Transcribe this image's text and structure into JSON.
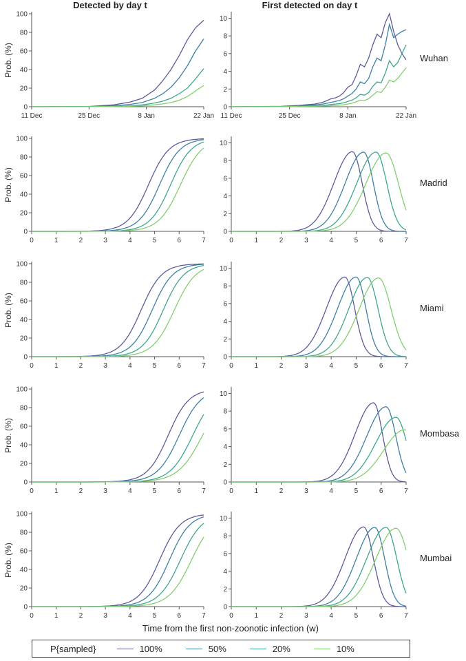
{
  "chart_data": {
    "type": "line",
    "column_titles": [
      "Detected by day t",
      "First detected on day t"
    ],
    "row_labels": [
      "Wuhan",
      "Madrid",
      "Miami",
      "Mombasa",
      "Mumbai"
    ],
    "ylabel": "Prob. (%)",
    "xlabel": "Time from the first non-zoonotic infection (w)",
    "legend_title": "P{sampled}",
    "series_names": [
      "100%",
      "50%",
      "20%",
      "10%"
    ],
    "series_colors": [
      "#5b5b9a",
      "#3f7fa5",
      "#3ea68f",
      "#82cf6d"
    ],
    "wuhan_xticks": {
      "labels": [
        "11 Dec",
        "25 Dec",
        "8 Jan",
        "22 Jan"
      ],
      "values": [
        0,
        14,
        28,
        42
      ]
    },
    "wuhan_xlim": [
      0,
      42
    ],
    "week_xticks": [
      "0",
      "1",
      "2",
      "3",
      "4",
      "5",
      "6",
      "7"
    ],
    "week_xlim": [
      0,
      7
    ],
    "cum_yticks": [
      "0",
      "20",
      "40",
      "60",
      "80",
      "100"
    ],
    "cum_ylim": [
      0,
      100
    ],
    "daily_yticks": [
      "0",
      "2",
      "4",
      "6",
      "8",
      "10"
    ],
    "daily_ylim": [
      0,
      10.5
    ],
    "wuhan": {
      "x": [
        0,
        14,
        20,
        24,
        27,
        30,
        32,
        34,
        36,
        38,
        40,
        42
      ],
      "cumulative": [
        {
          "name": "100%",
          "values": [
            0,
            0.3,
            2,
            5,
            9,
            18,
            28,
            40,
            55,
            72,
            85,
            93
          ]
        },
        {
          "name": "50%",
          "values": [
            0,
            0.2,
            1,
            2.5,
            4.5,
            9,
            14,
            21,
            31,
            44,
            60,
            73
          ]
        },
        {
          "name": "20%",
          "values": [
            0,
            0.1,
            0.4,
            1,
            2,
            4,
            6,
            9,
            14,
            20,
            30,
            41
          ]
        },
        {
          "name": "10%",
          "values": [
            0,
            0.05,
            0.2,
            0.5,
            1,
            2,
            3,
            4.5,
            7,
            11,
            17,
            23
          ]
        }
      ],
      "daily_x": [
        0,
        12,
        16,
        20,
        22,
        24,
        25,
        26,
        27,
        28,
        29,
        30,
        31,
        32,
        33,
        34,
        35,
        36,
        37,
        38,
        39,
        40,
        41,
        42
      ],
      "daily": [
        {
          "name": "100%",
          "values": [
            0,
            0.05,
            0.15,
            0.3,
            0.5,
            0.9,
            1.0,
            1.2,
            1.6,
            2.2,
            2.5,
            3.5,
            4.8,
            4.5,
            5.5,
            7.0,
            8.2,
            7.8,
            9.5,
            10.5,
            8.5,
            7.0,
            6.0,
            5.3
          ]
        },
        {
          "name": "50%",
          "values": [
            0,
            0.03,
            0.1,
            0.2,
            0.3,
            0.5,
            0.6,
            0.7,
            0.9,
            1.2,
            1.5,
            2.0,
            2.8,
            2.6,
            3.2,
            4.5,
            5.5,
            5.2,
            7.0,
            9.3,
            7.8,
            8.2,
            8.5,
            8.7
          ]
        },
        {
          "name": "20%",
          "values": [
            0,
            0.02,
            0.05,
            0.1,
            0.15,
            0.25,
            0.3,
            0.35,
            0.45,
            0.6,
            0.75,
            1.0,
            1.4,
            1.3,
            1.6,
            2.3,
            2.8,
            2.7,
            3.8,
            5.2,
            4.5,
            5.0,
            6.0,
            7.0
          ]
        },
        {
          "name": "10%",
          "values": [
            0,
            0.01,
            0.03,
            0.05,
            0.08,
            0.12,
            0.15,
            0.18,
            0.22,
            0.3,
            0.4,
            0.55,
            0.75,
            0.7,
            0.9,
            1.3,
            1.7,
            1.6,
            2.2,
            3.0,
            2.8,
            3.2,
            3.8,
            4.4
          ]
        }
      ]
    },
    "cities": [
      {
        "name": "Madrid",
        "cum_mid": [
          4.75,
          5.2,
          5.65,
          6.05
        ],
        "cum_scale": [
          0.42,
          0.42,
          0.42,
          0.44
        ],
        "cum_max": [
          100,
          100,
          100,
          100
        ],
        "peak_x": [
          4.85,
          5.3,
          5.8,
          6.2
        ],
        "peak_y": [
          9.0,
          8.95,
          8.95,
          8.85
        ],
        "rise": [
          1.05,
          1.05,
          1.1,
          1.15
        ],
        "fall": [
          0.55,
          0.55,
          0.6,
          0.7
        ]
      },
      {
        "name": "Miami",
        "cum_mid": [
          4.45,
          4.9,
          5.35,
          5.8
        ],
        "cum_scale": [
          0.42,
          0.42,
          0.42,
          0.44
        ],
        "cum_max": [
          100,
          100,
          100,
          100
        ],
        "peak_x": [
          4.55,
          5.0,
          5.45,
          5.9
        ],
        "peak_y": [
          9.0,
          9.0,
          8.95,
          8.9
        ],
        "rise": [
          1.05,
          1.05,
          1.05,
          1.1
        ],
        "fall": [
          0.55,
          0.55,
          0.6,
          0.7
        ]
      },
      {
        "name": "Mombasa",
        "cum_mid": [
          5.55,
          6.0,
          6.55,
          6.95
        ],
        "cum_scale": [
          0.42,
          0.44,
          0.46,
          0.5
        ],
        "cum_max": [
          100,
          100,
          100,
          100
        ],
        "peak_x": [
          5.7,
          6.2,
          6.6,
          6.95
        ],
        "peak_y": [
          8.95,
          8.5,
          7.3,
          5.9
        ],
        "rise": [
          1.05,
          1.1,
          1.15,
          1.2
        ],
        "fall": [
          0.5,
          0.55,
          0.6,
          0.8
        ]
      },
      {
        "name": "Mumbai",
        "cum_mid": [
          5.2,
          5.6,
          6.05,
          6.5
        ],
        "cum_scale": [
          0.42,
          0.42,
          0.44,
          0.46
        ],
        "cum_max": [
          100,
          100,
          100,
          100
        ],
        "peak_x": [
          5.3,
          5.75,
          6.2,
          6.6
        ],
        "peak_y": [
          9.0,
          8.95,
          8.95,
          8.85
        ],
        "rise": [
          1.05,
          1.05,
          1.1,
          1.15
        ],
        "fall": [
          0.55,
          0.55,
          0.6,
          0.7
        ]
      }
    ]
  }
}
